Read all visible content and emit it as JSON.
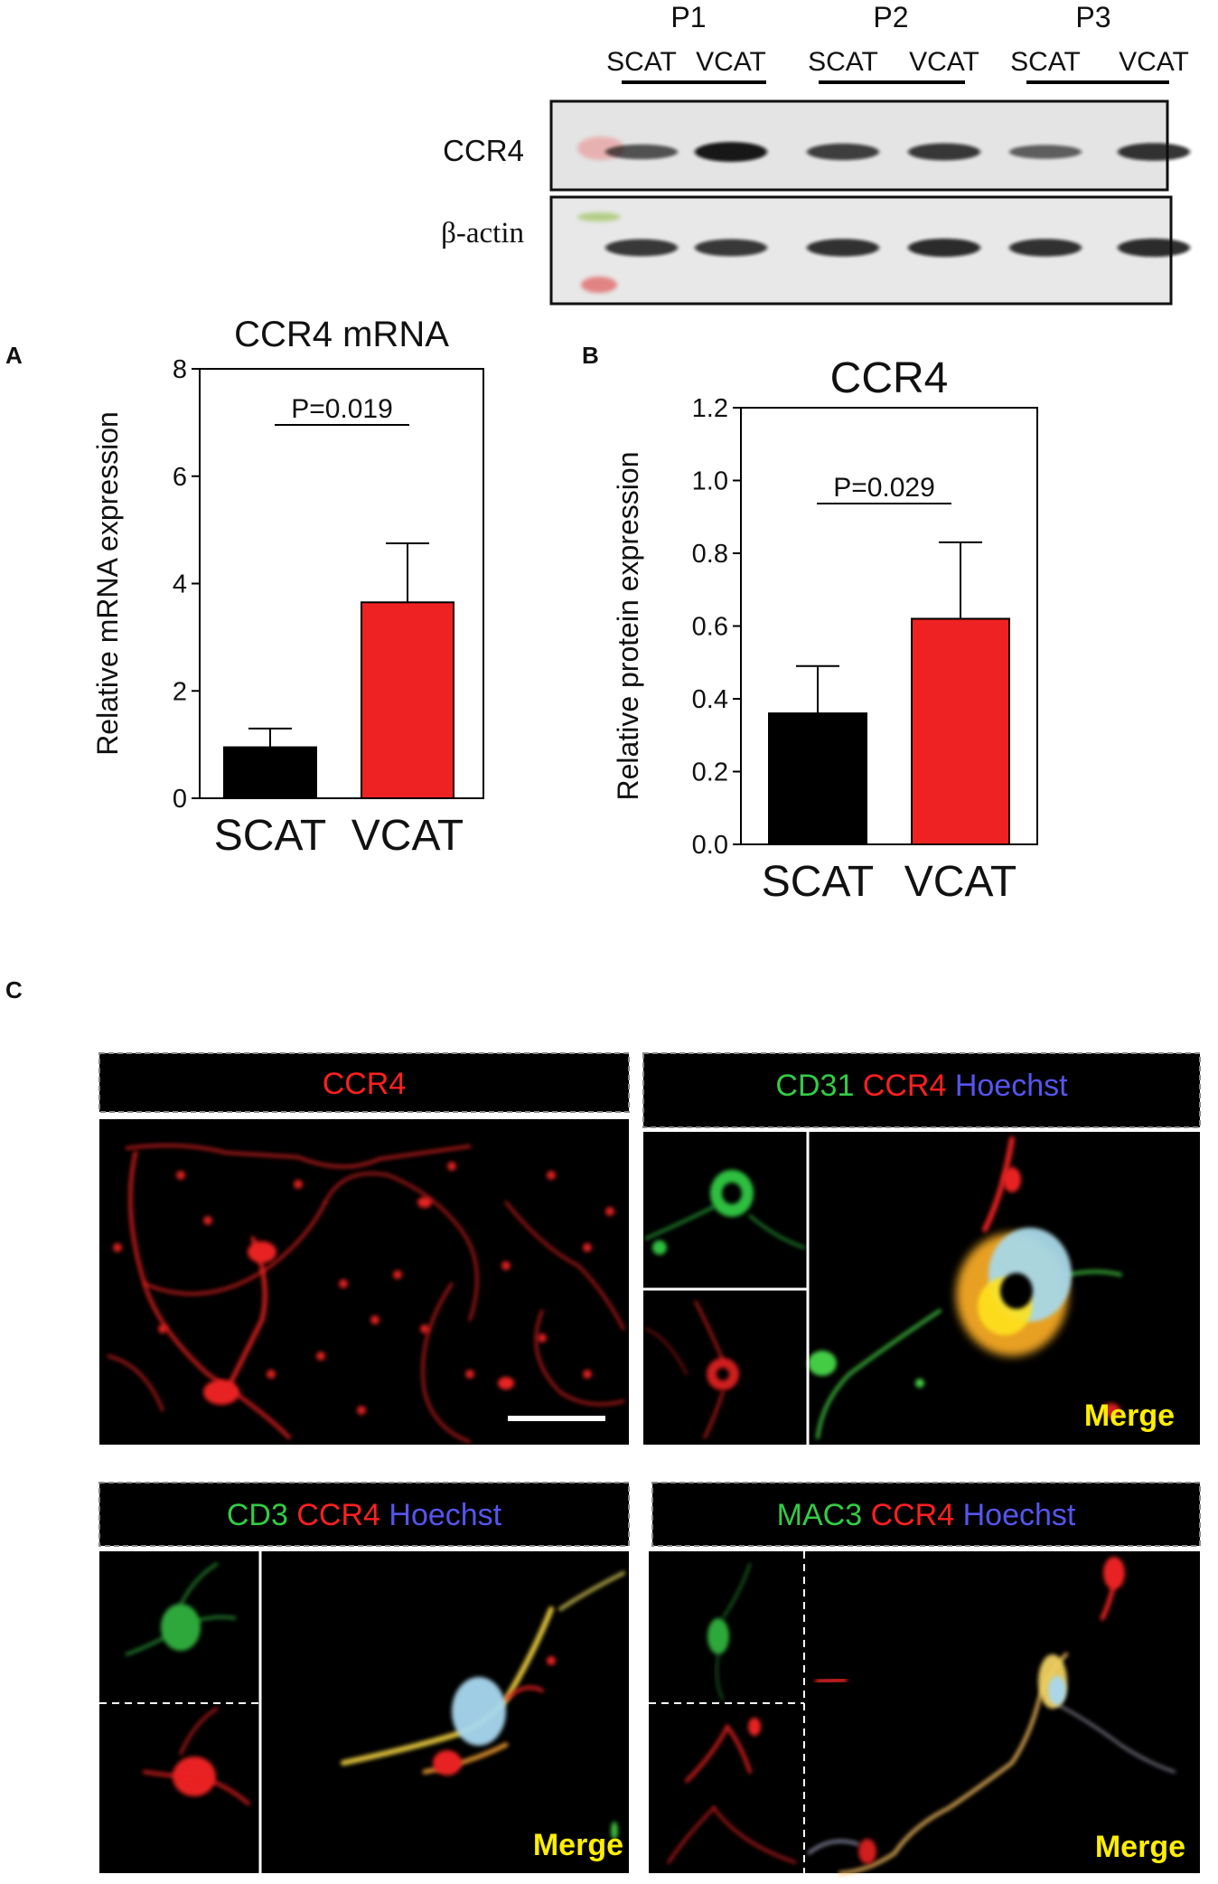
{
  "panel_labels": {
    "a": "A",
    "b": "B",
    "c": "C"
  },
  "western_blot": {
    "groups": [
      "P1",
      "P2",
      "P3"
    ],
    "lanes": [
      "SCAT",
      "VCAT",
      "SCAT",
      "VCAT",
      "SCAT",
      "VCAT"
    ],
    "rows": [
      {
        "label": "CCR4",
        "band_intensity": [
          0.55,
          1.0,
          0.7,
          0.75,
          0.45,
          0.8
        ]
      },
      {
        "label": "β-actin",
        "band_intensity": [
          0.75,
          0.75,
          0.8,
          0.85,
          0.8,
          0.85
        ]
      }
    ]
  },
  "chart_data": [
    {
      "type": "bar",
      "title": "CCR4  mRNA",
      "ylabel": "Relative mRNA expression",
      "xlabel": "",
      "categories": [
        "SCAT",
        "VCAT"
      ],
      "values": [
        0.95,
        3.65
      ],
      "errors": [
        0.35,
        1.1
      ],
      "colors": [
        "#000000",
        "#ee2222"
      ],
      "ylim": [
        0,
        8
      ],
      "yticks": [
        "0",
        "2",
        "4",
        "6",
        "8"
      ],
      "significance": "P=0.019",
      "grid": false
    },
    {
      "type": "bar",
      "title": "CCR4",
      "ylabel": "Relative protein expression",
      "xlabel": "",
      "categories": [
        "SCAT",
        "VCAT"
      ],
      "values": [
        0.36,
        0.62
      ],
      "errors": [
        0.13,
        0.21
      ],
      "colors": [
        "#000000",
        "#ee2222"
      ],
      "ylim": [
        0,
        1.2
      ],
      "yticks": [
        "0.0",
        "0.2",
        "0.4",
        "0.6",
        "0.8",
        "1.0",
        "1.2"
      ],
      "significance": "P=0.029",
      "grid": false
    }
  ],
  "microscopy": {
    "p1": {
      "title": [
        {
          "text": "CCR4",
          "color": "#ff2020"
        }
      ]
    },
    "p2": {
      "title": [
        {
          "text": "CD31",
          "color": "#33cc44"
        },
        {
          "text": "CCR4",
          "color": "#ff2020"
        },
        {
          "text": "Hoechst",
          "color": "#5555ee"
        }
      ],
      "merge": "Merge"
    },
    "p3": {
      "title": [
        {
          "text": "CD3",
          "color": "#33cc44"
        },
        {
          "text": "CCR4",
          "color": "#ff2020"
        },
        {
          "text": "Hoechst",
          "color": "#5555ee"
        }
      ],
      "merge": "Merge"
    },
    "p4": {
      "title": [
        {
          "text": "MAC3",
          "color": "#33cc44"
        },
        {
          "text": "CCR4",
          "color": "#ff2020"
        },
        {
          "text": "Hoechst",
          "color": "#5555ee"
        }
      ],
      "merge": "Merge"
    },
    "merge_color": "#ffee00"
  }
}
